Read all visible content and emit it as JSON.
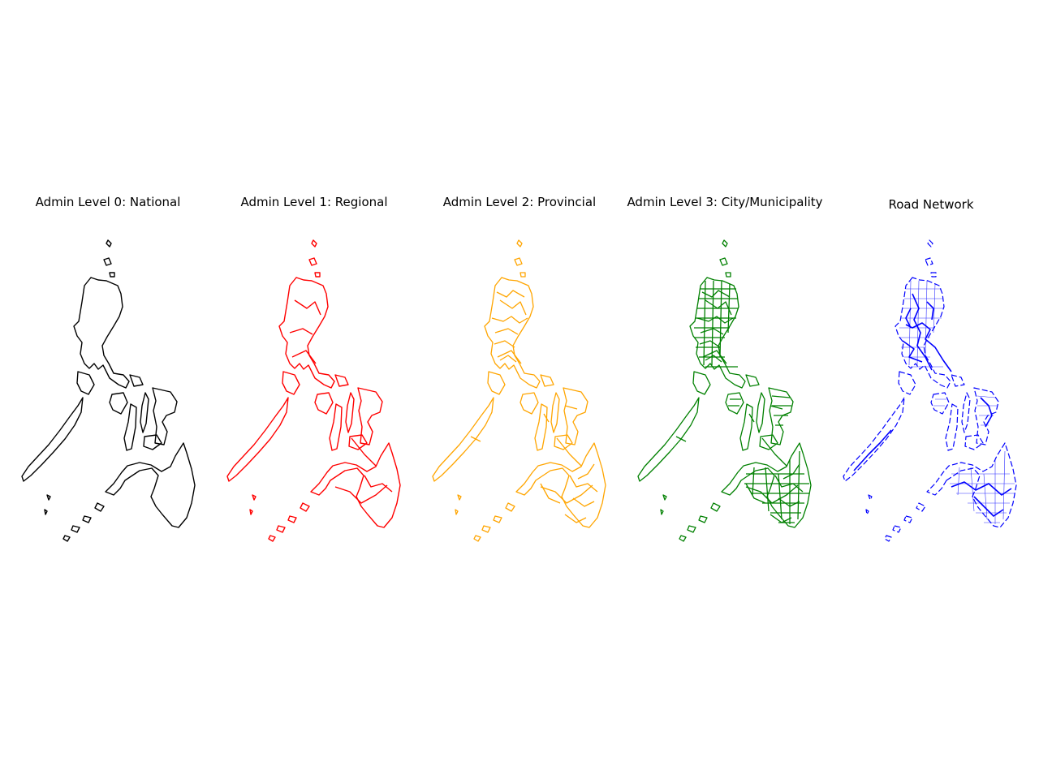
{
  "figure": {
    "panels": [
      {
        "title": "Admin Level 0: National",
        "color": "#000000",
        "detail": "national"
      },
      {
        "title": "Admin Level 1: Regional",
        "color": "#ff0000",
        "detail": "regional"
      },
      {
        "title": "Admin Level 2: Provincial",
        "color": "#ffa500",
        "detail": "provincial"
      },
      {
        "title": "Admin Level 3: City/Municipality",
        "color": "#008000",
        "detail": "municipal"
      },
      {
        "title": "Road Network",
        "color": "#0000ff",
        "detail": "roads"
      }
    ]
  }
}
